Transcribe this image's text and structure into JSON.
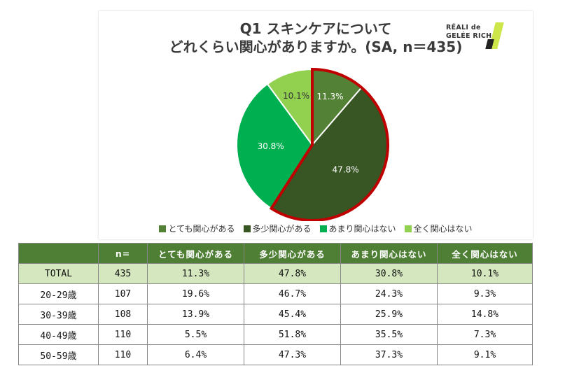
{
  "title_lines": [
    "Q1 スキンケアについて",
    "どれくらい関心がありますか。(SA, n＝435)"
  ],
  "logo": {
    "line1": "RÉALI de",
    "line2": "GELÉE RICH"
  },
  "chart_data": {
    "type": "pie",
    "title": "Q1 スキンケアについて どれくらい関心がありますか。(SA, n＝435)",
    "slices": [
      {
        "label": "とても関心がある",
        "value": 11.3,
        "display": "11.3%",
        "color": "#538135"
      },
      {
        "label": "多少関心がある",
        "value": 47.8,
        "display": "47.8%",
        "color": "#375623"
      },
      {
        "label": "あまり関心はない",
        "value": 30.8,
        "display": "30.8%",
        "color": "#00b050"
      },
      {
        "label": "全く関心はない",
        "value": 10.1,
        "display": "10.1%",
        "color": "#92d050"
      }
    ],
    "highlight_color": "#c00000",
    "highlighted": [
      "とても関心がある",
      "多少関心がある"
    ],
    "legend_position": "bottom"
  },
  "table": {
    "headers": [
      "",
      "n=",
      "とても関心がある",
      "多少関心がある",
      "あまり関心はない",
      "全く関心はない"
    ],
    "rows": [
      [
        "TOTAL",
        "435",
        "11.3%",
        "47.8%",
        "30.8%",
        "10.1%"
      ],
      [
        "20-29歳",
        "107",
        "19.6%",
        "46.7%",
        "24.3%",
        "9.3%"
      ],
      [
        "30-39歳",
        "108",
        "13.9%",
        "45.4%",
        "25.9%",
        "14.8%"
      ],
      [
        "40-49歳",
        "110",
        "5.5%",
        "51.8%",
        "35.5%",
        "7.3%"
      ],
      [
        "50-59歳",
        "110",
        "6.4%",
        "47.3%",
        "37.3%",
        "9.1%"
      ]
    ]
  }
}
